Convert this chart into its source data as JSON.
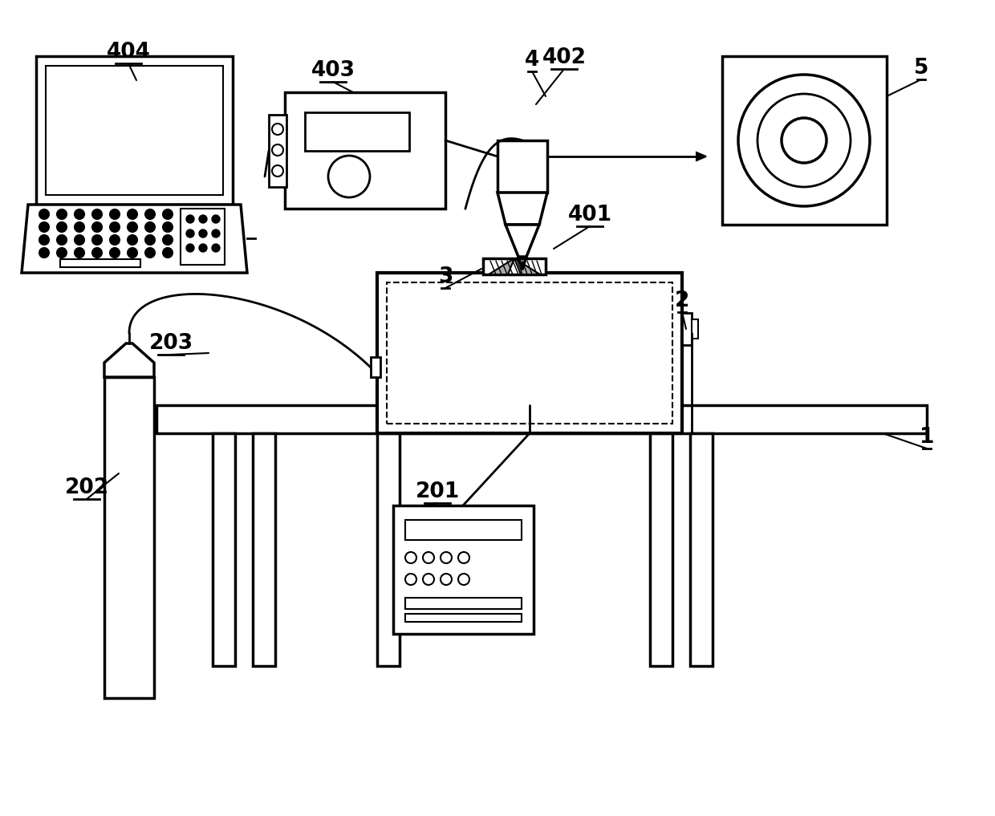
{
  "bg_color": "#ffffff",
  "line_color": "#000000",
  "lw": 2.5
}
